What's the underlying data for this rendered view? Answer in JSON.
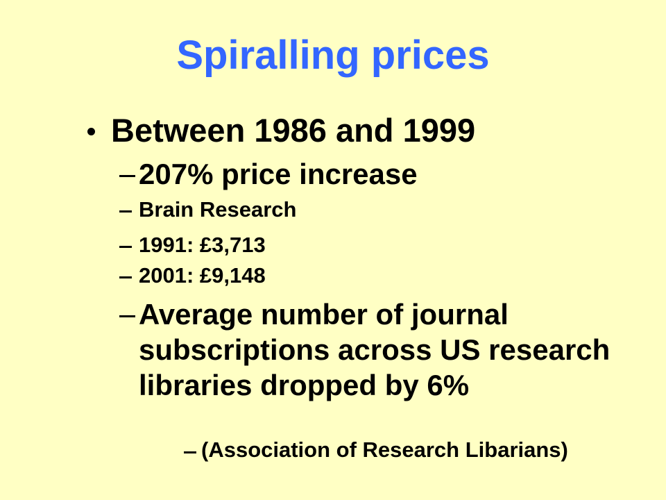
{
  "title": "Spiralling prices",
  "bullets": [
    {
      "text": "Between 1986 and 1999",
      "items": [
        "207% price increase",
        "Brain Research",
        "1991: £3,713",
        "2001: £9,148",
        "Average number of journal subscriptions across US research libraries dropped by 6%",
        "(Association of Research Libarians)"
      ]
    }
  ]
}
